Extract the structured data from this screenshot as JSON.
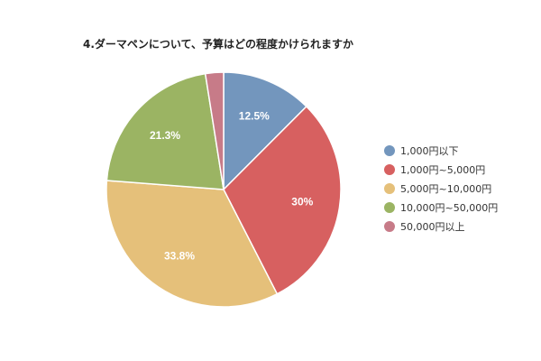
{
  "chart_data": {
    "type": "pie",
    "title": "4.ダーマペンについて、予算はどの程度かけられますか",
    "categories": [
      "1,000円以下",
      "1,000円~5,000円",
      "5,000円~10,000円",
      "10,000円~50,000円",
      "50,000円以上"
    ],
    "values": [
      12.5,
      30,
      33.8,
      21.3,
      2.5
    ],
    "data_labels": [
      "12.5%",
      "30%",
      "33.8%",
      "21.3%",
      ""
    ],
    "colors": [
      "#7396bd",
      "#d76060",
      "#e5c07a",
      "#9bb463",
      "#c77b88"
    ],
    "legend": "right"
  }
}
